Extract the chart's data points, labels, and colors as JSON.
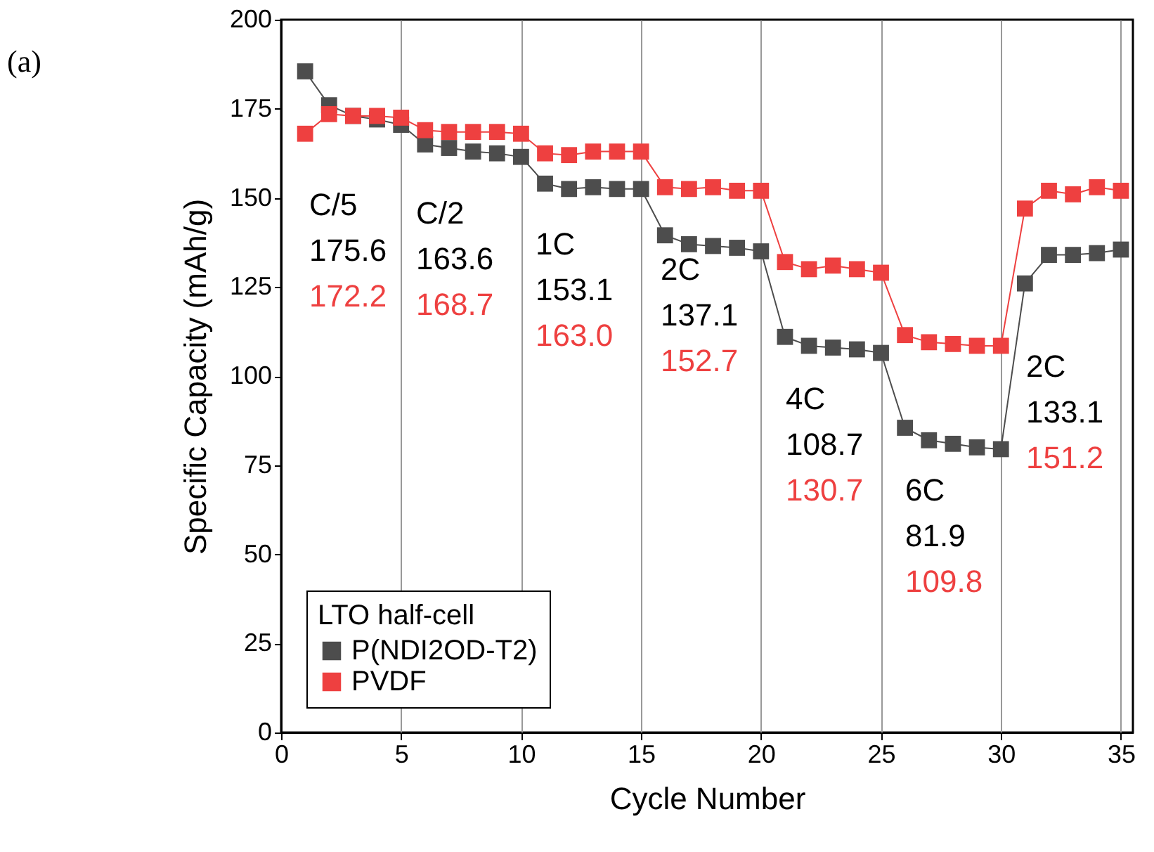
{
  "chart_data": {
    "type": "line",
    "xlabel": "Cycle Number",
    "ylabel": "Specific Capacity (mAh/g)",
    "legend_title": "LTO half-cell",
    "x": [
      1,
      2,
      3,
      4,
      5,
      6,
      7,
      8,
      9,
      10,
      11,
      12,
      13,
      14,
      15,
      16,
      17,
      18,
      19,
      20,
      21,
      22,
      23,
      24,
      25,
      26,
      27,
      28,
      29,
      30,
      31,
      32,
      33,
      34,
      35
    ],
    "series": [
      {
        "name": "P(NDI2OD-T2)",
        "color": "#4d4d4d",
        "values": [
          185.5,
          176,
          173,
          172,
          170.5,
          165,
          164,
          163,
          162.5,
          161.5,
          154,
          152.5,
          153,
          152.5,
          152.5,
          139.5,
          137,
          136.5,
          136,
          135,
          111,
          108.5,
          108,
          107.5,
          106.5,
          85.5,
          82,
          81,
          80,
          79.5,
          126,
          134,
          134,
          134.5,
          135.5
        ]
      },
      {
        "name": "PVDF",
        "color": "#ee4040",
        "values": [
          168,
          173.5,
          173,
          173,
          172.5,
          169,
          168.5,
          168.5,
          168.5,
          168,
          162.5,
          162,
          163,
          163,
          163,
          153,
          152.5,
          153,
          152,
          152,
          132,
          130,
          131,
          130,
          129,
          111.5,
          109.5,
          109,
          108.5,
          108.5,
          147,
          152,
          151,
          153,
          152
        ]
      }
    ],
    "xlim": [
      0,
      35.5
    ],
    "xticks": [
      0,
      5,
      10,
      15,
      20,
      25,
      30,
      35
    ],
    "ylim": [
      0,
      200
    ],
    "yticks": [
      0,
      25,
      50,
      75,
      100,
      125,
      150,
      175,
      200
    ],
    "grid": "x",
    "legend": "bottom left",
    "marker": "square",
    "line_style": "solid",
    "annotations": [
      "(a)",
      "C/5",
      "175.6",
      "172.2",
      "C/2",
      "163.6",
      "168.7",
      "1C",
      "153.1",
      "163.0",
      "2C",
      "137.1",
      "152.7",
      "4C",
      "108.7",
      "130.7",
      "6C",
      "81.9",
      "109.8",
      "2C",
      "133.1",
      "151.2"
    ]
  }
}
